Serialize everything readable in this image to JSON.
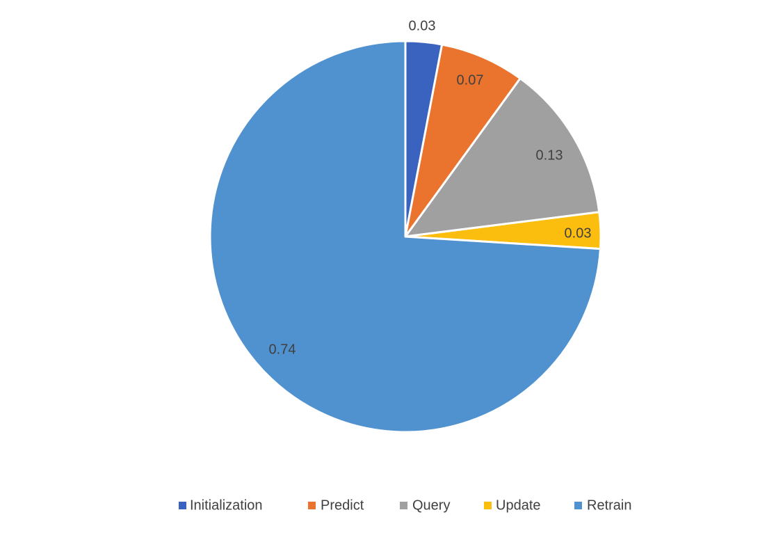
{
  "chart_data": {
    "type": "pie",
    "start_angle": "12 o'clock",
    "direction": "clockwise",
    "legend_position": "bottom",
    "slices": [
      {
        "name": "Initialization",
        "value": 0.03,
        "label": "0.03",
        "color": "#3A63BF"
      },
      {
        "name": "Predict",
        "value": 0.07,
        "label": "0.07",
        "color": "#EA732D"
      },
      {
        "name": "Query",
        "value": 0.13,
        "label": "0.13",
        "color": "#A0A0A0"
      },
      {
        "name": "Update",
        "value": 0.03,
        "label": "0.03",
        "color": "#FBBD0E"
      },
      {
        "name": "Retrain",
        "value": 0.74,
        "label": "0.74",
        "color": "#5092CF"
      }
    ]
  }
}
